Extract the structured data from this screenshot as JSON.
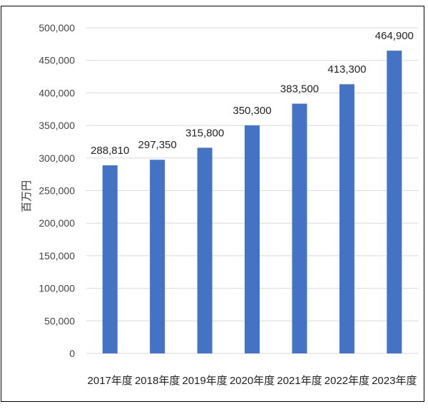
{
  "chart_data": {
    "type": "bar",
    "title": "",
    "xlabel": "",
    "ylabel": "百万円",
    "categories": [
      "2017年度",
      "2018年度",
      "2019年度",
      "2020年度",
      "2021年度",
      "2022年度",
      "2023年度"
    ],
    "values": [
      288810,
      297350,
      315800,
      350300,
      383500,
      413300,
      464900
    ],
    "data_labels": [
      "288,810",
      "297,350",
      "315,800",
      "350,300",
      "383,500",
      "413,300",
      "464,900"
    ],
    "ylim": [
      0,
      500000
    ],
    "yticks": [
      0,
      50000,
      100000,
      150000,
      200000,
      250000,
      300000,
      350000,
      400000,
      450000,
      500000
    ],
    "ytick_labels": [
      "0",
      "50,000",
      "100,000",
      "150,000",
      "200,000",
      "250,000",
      "300,000",
      "350,000",
      "400,000",
      "450,000",
      "500,000"
    ],
    "grid": true,
    "legend": "none",
    "bar_color": "#4472C4",
    "grid_color": "#D9D9D9"
  }
}
